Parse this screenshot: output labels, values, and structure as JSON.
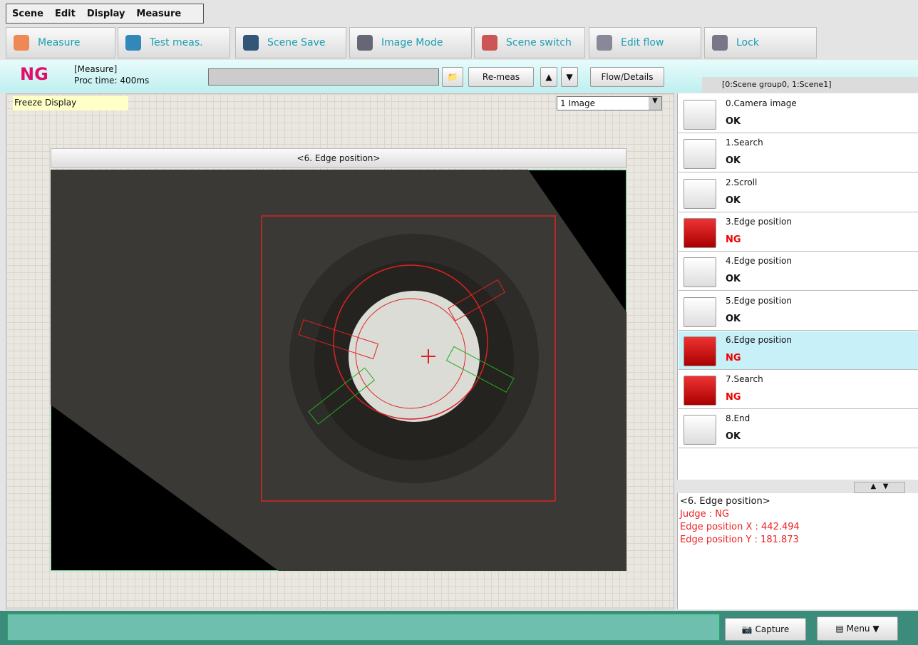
{
  "menu": [
    "Scene",
    "Edit",
    "Display",
    "Measure"
  ],
  "toolbar": [
    "Measure",
    "Test meas.",
    "Scene Save",
    "Image Mode",
    "Scene switch",
    "Edit flow",
    "Lock"
  ],
  "status": {
    "judge": "NG",
    "mode": "[Measure]",
    "proc_time": "Proc time: 400ms",
    "remeas": "Re-meas",
    "flow_details": "Flow/Details",
    "scene": "[0:Scene group0, 1:Scene1]"
  },
  "display": {
    "freeze": "Freeze Display",
    "image_select": "1 Image",
    "panel_title": "<6. Edge position>"
  },
  "flow": [
    {
      "label": "0.Camera image",
      "result": "OK"
    },
    {
      "label": "1.Search",
      "result": "OK"
    },
    {
      "label": "2.Scroll",
      "result": "OK"
    },
    {
      "label": "3.Edge position",
      "result": "NG"
    },
    {
      "label": "4.Edge position",
      "result": "OK"
    },
    {
      "label": "5.Edge position",
      "result": "OK"
    },
    {
      "label": "6.Edge position",
      "result": "NG"
    },
    {
      "label": "7.Search",
      "result": "NG"
    },
    {
      "label": "8.End",
      "result": "OK"
    }
  ],
  "detail": {
    "title": "<6. Edge position>",
    "lines": [
      "Judge : NG",
      "Edge position X : 442.494",
      "Edge position Y : 181.873"
    ]
  },
  "footer": {
    "capture": "Capture",
    "menu": "Menu"
  }
}
